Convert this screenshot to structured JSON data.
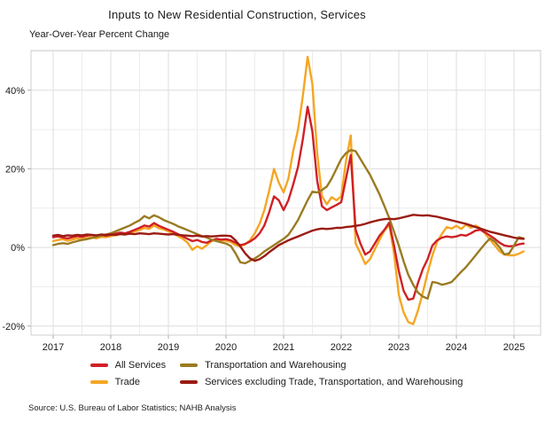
{
  "title": "Inputs to New Residential Construction, Services",
  "subtitle": "Year-Over-Year Percent Change",
  "source": "Source: U.S. Bureau of Labor Statistics; NAHB Analysis",
  "chart_data": {
    "type": "line",
    "x_start": "2017-01",
    "x_frequency": "monthly",
    "x_tick_labels": [
      "2017",
      "2018",
      "2019",
      "2020",
      "2021",
      "2022",
      "2023",
      "2024",
      "2025"
    ],
    "y_ticks": [
      40,
      20,
      0,
      -20
    ],
    "y_tick_labels": [
      "40%",
      "20%",
      "0%",
      "-20%"
    ],
    "ylim": [
      -22.3,
      50.1
    ],
    "grid": {
      "h_minor_step": 10,
      "v_minor_step_months": 6,
      "color_major": "#dedede",
      "color_minor": "#ececec",
      "panel_border": "#cfcfcf"
    },
    "legend_position": "bottom",
    "series": [
      {
        "name": "All Services",
        "color": "#d02026",
        "values": [
          2.6,
          2.8,
          2.5,
          2.3,
          2.6,
          2.9,
          2.7,
          3.0,
          3.2,
          2.9,
          3.1,
          3.0,
          3.2,
          3.5,
          3.8,
          3.6,
          4.0,
          4.5,
          5.0,
          5.6,
          5.3,
          6.2,
          5.5,
          5.0,
          4.5,
          4.0,
          3.4,
          2.8,
          2.2,
          1.6,
          1.9,
          1.4,
          1.2,
          1.8,
          2.2,
          2.0,
          2.1,
          1.8,
          1.2,
          0.6,
          0.9,
          1.5,
          2.3,
          3.6,
          5.6,
          9.0,
          13.0,
          12.0,
          9.5,
          12.0,
          16.0,
          20.5,
          27.5,
          35.8,
          29.5,
          17.0,
          10.5,
          9.5,
          10.2,
          10.8,
          11.5,
          17.5,
          23.5,
          4.5,
          1.0,
          -1.8,
          -1.0,
          1.0,
          3.0,
          4.5,
          6.3,
          0.5,
          -6.0,
          -11.0,
          -13.3,
          -13.0,
          -9.0,
          -5.5,
          -3.0,
          0.5,
          1.8,
          2.5,
          2.8,
          2.6,
          2.8,
          3.2,
          3.0,
          3.6,
          4.3,
          4.5,
          3.8,
          3.0,
          2.2,
          1.2,
          0.5,
          0.3,
          0.4,
          0.8,
          1.0
        ]
      },
      {
        "name": "Trade",
        "color": "#f5a623",
        "values": [
          1.6,
          1.9,
          2.1,
          1.7,
          2.0,
          2.3,
          2.1,
          2.4,
          2.6,
          2.3,
          2.7,
          2.6,
          2.9,
          3.1,
          3.4,
          3.3,
          3.7,
          4.1,
          4.4,
          5.0,
          4.7,
          5.6,
          4.9,
          4.6,
          4.1,
          3.6,
          2.9,
          2.2,
          1.2,
          -0.6,
          0.3,
          -0.3,
          0.6,
          1.6,
          2.0,
          1.8,
          1.7,
          1.4,
          0.6,
          0.3,
          0.8,
          1.8,
          3.6,
          6.0,
          9.5,
          14.5,
          20.0,
          16.5,
          14.0,
          17.5,
          24.5,
          30.0,
          38.5,
          48.5,
          41.5,
          24.0,
          13.0,
          11.0,
          12.8,
          12.0,
          13.0,
          22.0,
          28.5,
          1.0,
          -1.5,
          -4.2,
          -3.0,
          -0.5,
          2.0,
          4.3,
          5.8,
          -1.5,
          -12.0,
          -16.5,
          -19.0,
          -19.5,
          -16.0,
          -11.5,
          -6.5,
          -2.0,
          1.5,
          3.5,
          5.2,
          4.8,
          5.5,
          4.7,
          5.8,
          5.0,
          5.6,
          4.8,
          3.5,
          2.0,
          0.5,
          -1.0,
          -1.8,
          -2.0,
          -2.0,
          -1.6,
          -1.0
        ]
      },
      {
        "name": "Transportation and Warehousing",
        "color": "#9a7b22",
        "values": [
          0.6,
          0.9,
          1.1,
          0.9,
          1.3,
          1.6,
          1.9,
          2.1,
          2.4,
          2.7,
          3.0,
          3.3,
          3.6,
          4.1,
          4.6,
          5.1,
          5.6,
          6.3,
          6.9,
          8.0,
          7.4,
          8.2,
          7.7,
          7.0,
          6.5,
          6.0,
          5.4,
          4.9,
          4.4,
          3.9,
          3.4,
          2.9,
          2.5,
          2.0,
          1.6,
          1.3,
          1.0,
          0.4,
          -1.5,
          -3.8,
          -4.0,
          -3.4,
          -2.8,
          -2.0,
          -1.0,
          -0.2,
          0.6,
          1.4,
          2.2,
          3.2,
          5.0,
          7.0,
          9.5,
          12.0,
          14.2,
          14.0,
          14.6,
          15.5,
          17.5,
          20.0,
          22.5,
          24.0,
          24.8,
          24.5,
          22.5,
          20.5,
          18.5,
          16.0,
          13.5,
          10.5,
          7.5,
          4.0,
          0.5,
          -3.5,
          -7.0,
          -9.5,
          -11.5,
          -12.5,
          -13.0,
          -8.8,
          -9.0,
          -9.5,
          -9.2,
          -8.8,
          -7.5,
          -6.2,
          -5.0,
          -3.5,
          -2.0,
          -0.5,
          1.0,
          2.3,
          1.5,
          0.0,
          -1.8,
          -1.5,
          0.5,
          2.6,
          2.3
        ]
      },
      {
        "name": "Services excluding Trade, Transportation, and Warehousing",
        "color": "#9b1b12",
        "values": [
          3.0,
          3.2,
          2.9,
          3.1,
          3.0,
          3.2,
          3.1,
          3.3,
          3.2,
          3.1,
          3.3,
          3.2,
          3.3,
          3.2,
          3.4,
          3.3,
          3.5,
          3.4,
          3.6,
          3.5,
          3.4,
          3.6,
          3.5,
          3.4,
          3.3,
          3.4,
          3.2,
          3.1,
          3.0,
          2.9,
          3.0,
          2.8,
          2.9,
          2.8,
          2.9,
          3.0,
          3.0,
          2.9,
          1.8,
          0.2,
          -1.5,
          -2.8,
          -3.4,
          -3.0,
          -2.2,
          -1.2,
          -0.3,
          0.6,
          1.2,
          1.8,
          2.3,
          2.8,
          3.3,
          3.8,
          4.3,
          4.6,
          4.8,
          4.7,
          4.8,
          5.0,
          5.0,
          5.2,
          5.3,
          5.5,
          5.7,
          6.0,
          6.4,
          6.7,
          7.0,
          7.2,
          7.3,
          7.2,
          7.4,
          7.7,
          8.0,
          8.3,
          8.2,
          8.1,
          8.2,
          8.0,
          7.8,
          7.5,
          7.2,
          6.9,
          6.6,
          6.3,
          6.0,
          5.6,
          5.2,
          4.8,
          4.4,
          4.0,
          3.7,
          3.4,
          3.1,
          2.8,
          2.5,
          2.3,
          2.2
        ]
      }
    ]
  }
}
